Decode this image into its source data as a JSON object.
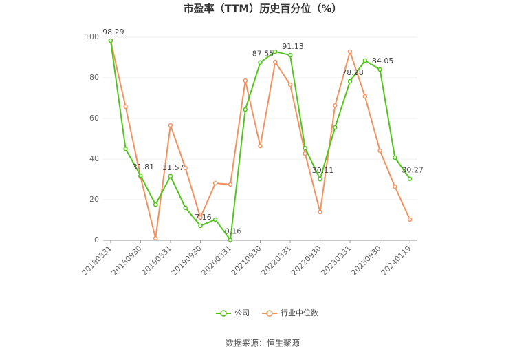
{
  "chart_data": {
    "type": "line",
    "title": "市盈率（TTM）历史百分位（%）",
    "categories": [
      "20180331",
      null,
      "20180930",
      null,
      "20190331",
      null,
      "20190930",
      null,
      "20200331",
      null,
      "20210930",
      null,
      "20220331",
      null,
      "20220930",
      null,
      "20230331",
      null,
      "20230930",
      null,
      "20240119"
    ],
    "series": [
      {
        "name": "公司",
        "color": "#52c41a",
        "values": [
          98.29,
          45,
          31.81,
          17.6,
          31.57,
          16,
          7.16,
          10.2,
          0.16,
          64.4,
          87.55,
          92.9,
          91.13,
          45.4,
          30.11,
          55.6,
          78.28,
          88.5,
          84.05,
          40.7,
          30.27
        ],
        "value_labels": [
          "98.29",
          null,
          "31.81",
          null,
          "31.57",
          null,
          "7.16",
          null,
          "0.16",
          null,
          "87.55",
          null,
          "91.13",
          null,
          "30.11",
          null,
          "78.28",
          null,
          "84.05",
          null,
          "30.27"
        ]
      },
      {
        "name": "行业中位数",
        "color": "#f4915e",
        "values": [
          98.3,
          65.8,
          31.2,
          1,
          56.6,
          35.6,
          11.2,
          28.1,
          27.5,
          78.6,
          46.4,
          87.8,
          76.6,
          42.7,
          13.9,
          66.4,
          92.9,
          70.8,
          44.1,
          26.4,
          10.2
        ]
      }
    ],
    "ylim": [
      0,
      100
    ],
    "yticks": [
      0,
      20,
      40,
      60,
      80,
      100
    ],
    "grid": true,
    "source": "数据来源：恒生聚源"
  }
}
